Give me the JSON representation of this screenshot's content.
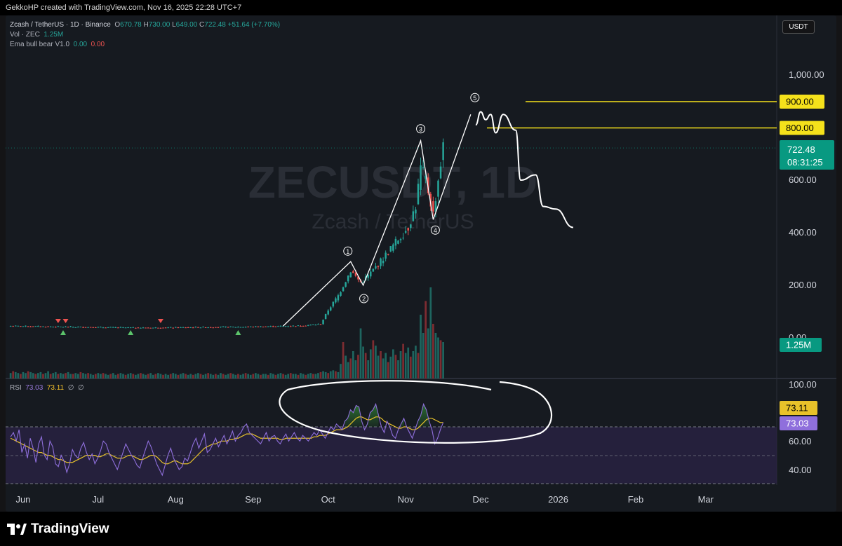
{
  "header": {
    "credit": "GekkoHP created with TradingView.com, Nov 16, 2025 22:28 UTC+7"
  },
  "legend": {
    "symbol": "Zcash / TetherUS · 1D · Binance",
    "o_label": "O",
    "o": "670.78",
    "h_label": "H",
    "h": "730.00",
    "l_label": "L",
    "l": "649.00",
    "c_label": "C",
    "c": "722.48",
    "change": "+51.64 (+7.70%)",
    "vol_label": "Vol · ZEC",
    "vol": "1.25M",
    "ema_label": "Ema bull bear V1.0",
    "ema_a": "0.00",
    "ema_b": "0.00",
    "rsi_label": "RSI",
    "rsi": "73.03",
    "rsi_ma": "73.11",
    "rsi_extra1": "∅",
    "rsi_extra2": "∅"
  },
  "currency_button": "USDT",
  "watermark": {
    "ticker": "ZECUSDT, 1D",
    "name": "Zcash / TetherUS"
  },
  "price_axis": {
    "ticks": [
      "1,000.00",
      "800.00",
      "600.00",
      "400.00",
      "200.00",
      "0.00"
    ]
  },
  "price_badges": {
    "level_900": "900.00",
    "level_800": "800.00",
    "last_price": "722.48",
    "countdown": "08:31:25",
    "volume": "1.25M"
  },
  "rsi_axis": {
    "ticks": [
      "100.00",
      "60.00",
      "40.00"
    ],
    "ma_badge": "73.11",
    "rsi_badge": "73.03"
  },
  "time_axis": {
    "labels": [
      "Jun",
      "Jul",
      "Aug",
      "Sep",
      "Oct",
      "Nov",
      "Dec",
      "2026",
      "Feb",
      "Mar"
    ]
  },
  "wave_labels": [
    "1",
    "2",
    "3",
    "4",
    "5"
  ],
  "footer": {
    "brand": "TradingView"
  },
  "colors": {
    "up": "#26a69a",
    "down": "#ef5350",
    "level": "#f5e11b",
    "rsi": "#8f6fdc",
    "rsi_ma": "#e8c22a",
    "badge_green": "#089981"
  },
  "chart_data": [
    {
      "type": "candlestick",
      "title": "Zcash / TetherUS · 1D · Binance",
      "ylim": [
        0,
        1000
      ],
      "x_range": [
        "2025-05-25",
        "2026-03-28"
      ],
      "price_path": [
        [
          "2025-05-27",
          45
        ],
        [
          "2025-06-15",
          42
        ],
        [
          "2025-07-01",
          40
        ],
        [
          "2025-07-20",
          38
        ],
        [
          "2025-08-10",
          40
        ],
        [
          "2025-09-01",
          42
        ],
        [
          "2025-09-20",
          46
        ],
        [
          "2025-09-28",
          52
        ],
        [
          "2025-10-01",
          105
        ],
        [
          "2025-10-05",
          160
        ],
        [
          "2025-10-10",
          255
        ],
        [
          "2025-10-14",
          210
        ],
        [
          "2025-10-17",
          235
        ],
        [
          "2025-10-22",
          290
        ],
        [
          "2025-10-27",
          350
        ],
        [
          "2025-11-02",
          420
        ],
        [
          "2025-11-05",
          500
        ],
        [
          "2025-11-07",
          640
        ],
        [
          "2025-11-09",
          600
        ],
        [
          "2025-11-12",
          470
        ],
        [
          "2025-11-14",
          600
        ],
        [
          "2025-11-16",
          722.48
        ]
      ],
      "events": [
        {
          "date": "2025-06-15",
          "kind": "bear"
        },
        {
          "date": "2025-06-18",
          "kind": "bear"
        },
        {
          "date": "2025-06-17",
          "kind": "bull"
        },
        {
          "date": "2025-07-14",
          "kind": "bull"
        },
        {
          "date": "2025-07-26",
          "kind": "bear"
        },
        {
          "date": "2025-08-26",
          "kind": "bull"
        }
      ],
      "elliott_waves": [
        {
          "label": "1",
          "date": "2025-10-10",
          "price": 290
        },
        {
          "label": "2",
          "date": "2025-10-15",
          "price": 200
        },
        {
          "label": "3",
          "date": "2025-11-07",
          "price": 750
        },
        {
          "label": "4",
          "date": "2025-11-12",
          "price": 450
        },
        {
          "label": "5",
          "date": "2025-11-27",
          "price": 850
        }
      ],
      "horizontal_levels": [
        900,
        800
      ],
      "projection": [
        [
          "2025-11-29",
          810
        ],
        [
          "2025-12-01",
          860
        ],
        [
          "2025-12-03",
          830
        ],
        [
          "2025-12-05",
          850
        ],
        [
          "2025-12-07",
          780
        ],
        [
          "2025-12-10",
          850
        ],
        [
          "2025-12-15",
          790
        ],
        [
          "2025-12-17",
          600
        ],
        [
          "2025-12-23",
          620
        ],
        [
          "2025-12-26",
          500
        ],
        [
          "2025-12-31",
          490
        ],
        [
          "2026-01-07",
          420
        ]
      ]
    },
    {
      "type": "bar",
      "title": "Vol · ZEC",
      "last_value": "1.25M",
      "relative_volume": [
        0.06,
        0.08,
        0.07,
        0.06,
        0.05,
        0.07,
        0.06,
        0.08,
        0.07,
        0.06,
        0.05,
        0.06,
        0.07,
        0.05,
        0.06,
        0.08,
        0.05,
        0.06,
        0.07,
        0.05,
        0.06,
        0.05,
        0.06,
        0.07,
        0.05,
        0.05,
        0.06,
        0.05,
        0.07,
        0.06,
        0.05,
        0.06,
        0.05,
        0.04,
        0.05,
        0.06,
        0.05,
        0.06,
        0.05,
        0.04,
        0.05,
        0.06,
        0.04,
        0.05,
        0.06,
        0.05,
        0.04,
        0.05,
        0.06,
        0.05,
        0.04,
        0.05,
        0.06,
        0.05,
        0.04,
        0.05,
        0.06,
        0.04,
        0.05,
        0.06,
        0.05,
        0.04,
        0.05,
        0.04,
        0.05,
        0.06,
        0.05,
        0.04,
        0.05,
        0.06,
        0.05,
        0.04,
        0.05,
        0.04,
        0.05,
        0.06,
        0.05,
        0.04,
        0.05,
        0.06,
        0.05,
        0.04,
        0.05,
        0.04,
        0.06,
        0.05,
        0.04,
        0.05,
        0.06,
        0.05,
        0.04,
        0.05,
        0.04,
        0.05,
        0.06,
        0.05,
        0.04,
        0.05,
        0.06,
        0.05,
        0.04,
        0.05,
        0.05,
        0.04,
        0.06,
        0.05,
        0.04,
        0.05,
        0.06,
        0.05,
        0.04,
        0.05,
        0.06,
        0.05,
        0.05,
        0.04,
        0.06,
        0.05,
        0.04,
        0.05,
        0.06,
        0.05,
        0.05,
        0.06,
        0.07,
        0.08,
        0.07,
        0.06,
        0.08,
        0.09,
        0.08,
        0.07,
        0.16,
        0.4,
        0.25,
        0.18,
        0.22,
        0.3,
        0.2,
        0.26,
        0.55,
        0.35,
        0.28,
        0.2,
        0.32,
        0.42,
        0.36,
        0.25,
        0.3,
        0.22,
        0.28,
        0.18,
        0.24,
        0.32,
        0.26,
        0.2,
        0.3,
        0.38,
        0.28,
        0.34,
        0.24,
        0.3,
        0.36,
        0.28,
        0.7,
        0.5,
        0.85,
        0.55,
        1.0,
        0.6,
        0.5,
        0.45,
        0.42,
        0.4
      ]
    },
    {
      "type": "line",
      "title": "RSI",
      "ylim": [
        30,
        100
      ],
      "series": [
        {
          "name": "RSI",
          "values": [
            63,
            66,
            60,
            68,
            52,
            58,
            48,
            62,
            55,
            45,
            58,
            63,
            50,
            47,
            60,
            56,
            44,
            42,
            50,
            46,
            38,
            44,
            54,
            50,
            48,
            55,
            59,
            52,
            47,
            51,
            44,
            48,
            53,
            60,
            58,
            52,
            48,
            44,
            40,
            46,
            52,
            58,
            54,
            50,
            47,
            43,
            41,
            48,
            54,
            60,
            56,
            50,
            44,
            40,
            36,
            43,
            50,
            55,
            48,
            44,
            40,
            42,
            48,
            46,
            52,
            58,
            62,
            55,
            60,
            65,
            52,
            54,
            58,
            62,
            56,
            60,
            64,
            58,
            62,
            67,
            60,
            64,
            66,
            70,
            72,
            66,
            64,
            62,
            60,
            58,
            62,
            66,
            60,
            63,
            64,
            60,
            58,
            62,
            65,
            60,
            63,
            66,
            62,
            60,
            64,
            62,
            60,
            63,
            66,
            64,
            68,
            65,
            62,
            66,
            70,
            68,
            72,
            70,
            68,
            74,
            76,
            82,
            80,
            85,
            84,
            74,
            68,
            72,
            80,
            82,
            86,
            78,
            70,
            66,
            74,
            70,
            64,
            62,
            68,
            72,
            76,
            70,
            66,
            62,
            68,
            74,
            78,
            86,
            82,
            74,
            68,
            58,
            62,
            68,
            73.03
          ]
        },
        {
          "name": "RSI-based MA",
          "values": [
            62,
            61,
            60,
            59,
            58,
            57,
            56,
            55,
            54,
            53,
            52,
            52,
            51,
            50,
            50,
            49,
            48,
            47,
            47,
            46,
            45,
            45,
            45,
            46,
            47,
            48,
            49,
            50,
            50,
            50,
            50,
            49,
            49,
            50,
            51,
            51,
            50,
            49,
            48,
            48,
            48,
            49,
            50,
            50,
            49,
            48,
            47,
            47,
            48,
            49,
            50,
            50,
            49,
            47,
            45,
            44,
            44,
            45,
            46,
            46,
            45,
            44,
            44,
            44,
            45,
            47,
            49,
            51,
            53,
            55,
            56,
            57,
            58,
            58,
            59,
            60,
            60,
            60,
            61,
            61,
            62,
            62,
            63,
            64,
            65,
            65,
            65,
            64,
            63,
            62,
            62,
            62,
            62,
            62,
            62,
            62,
            61,
            61,
            62,
            62,
            62,
            62,
            62,
            62,
            62,
            62,
            62,
            62,
            63,
            63,
            64,
            64,
            64,
            65,
            66,
            67,
            68,
            68,
            68,
            69,
            70,
            72,
            74,
            76,
            77,
            77,
            76,
            75,
            75,
            76,
            77,
            77,
            76,
            74,
            73,
            72,
            71,
            70,
            69,
            69,
            70,
            70,
            69,
            68,
            68,
            69,
            71,
            73,
            75,
            76,
            76,
            75,
            74,
            73,
            73.11
          ]
        }
      ],
      "overbought": 70,
      "oversold": 30,
      "midline": 50
    }
  ]
}
